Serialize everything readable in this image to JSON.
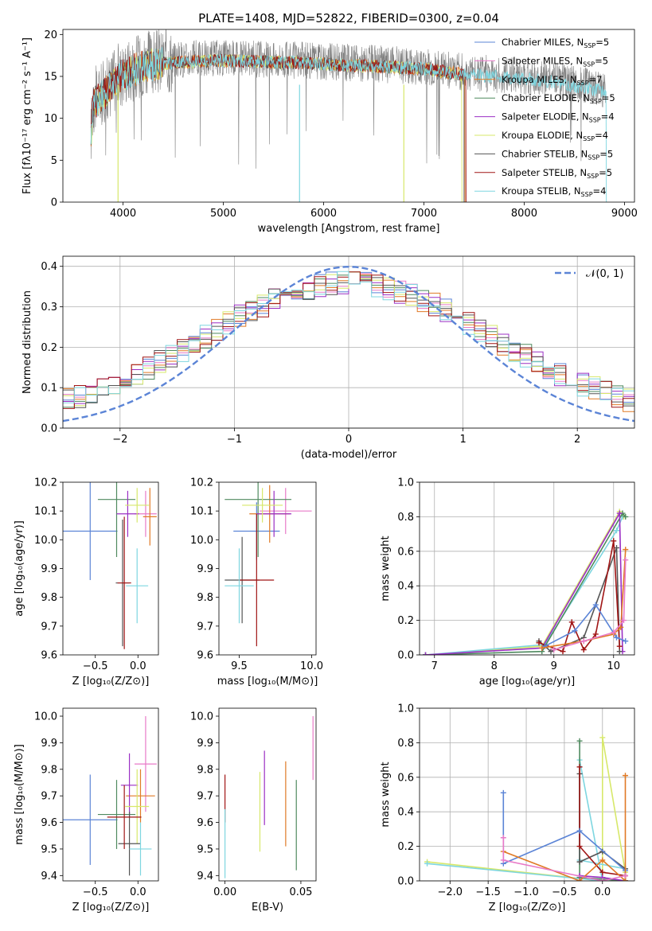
{
  "title": "PLATE=1408, MJD=52822, FIBERID=0300, z=0.04",
  "colors": {
    "Chabrier MILES": "#5b84d6",
    "Salpeter MILES": "#e87ac8",
    "Kroupa MILES": "#e07a25",
    "Chabrier ELODIE": "#4f8a5f",
    "Salpeter ELODIE": "#9b2fc4",
    "Kroupa ELODIE": "#d7e86a",
    "Chabrier STELIB": "#555555",
    "Salpeter STELIB": "#a01515",
    "Kroupa STELIB": "#7ed6e0",
    "gaussian": "#5b84d6",
    "data": "#808080"
  },
  "chart_data": [
    {
      "type": "line",
      "title": "PLATE=1408, MJD=52822, FIBERID=0300, z=0.04",
      "xlabel": "wavelength [Angstrom, rest frame]",
      "ylabel": "Flux [fλ10⁻¹⁷ erg cm⁻² s⁻¹ A⁻¹]",
      "xlim": [
        3400,
        9100
      ],
      "ylim": [
        0,
        20.6
      ],
      "xticks": [
        "4000",
        "5000",
        "6000",
        "7000",
        "8000",
        "9000"
      ],
      "yticks": [
        "0",
        "5",
        "10",
        "15",
        "20"
      ],
      "legend_position": "right",
      "legend": [
        {
          "model": "Chabrier MILES",
          "label": "Chabrier MILES, N",
          "nssp": "=5"
        },
        {
          "model": "Salpeter MILES",
          "label": "Salpeter MILES, N",
          "nssp": "=5"
        },
        {
          "model": "Kroupa MILES",
          "label": "Kroupa MILES, N",
          "nssp": "=7"
        },
        {
          "model": "Chabrier ELODIE",
          "label": "Chabrier ELODIE, N",
          "nssp": "=5"
        },
        {
          "model": "Salpeter ELODIE",
          "label": "Salpeter ELODIE, N",
          "nssp": "=4"
        },
        {
          "model": "Kroupa ELODIE",
          "label": "Kroupa ELODIE, N",
          "nssp": "=4"
        },
        {
          "model": "Chabrier STELIB",
          "label": "Chabrier STELIB, N",
          "nssp": "=5"
        },
        {
          "model": "Salpeter STELIB",
          "label": "Salpeter STELIB, N",
          "nssp": "=5"
        },
        {
          "model": "Kroupa STELIB",
          "label": "Kroupa STELIB, N",
          "nssp": "=4"
        }
      ],
      "continuum": {
        "x": [
          3680,
          3700,
          3800,
          3900,
          4000,
          4200,
          4500,
          5000,
          5500,
          6000,
          6500,
          7000,
          7400,
          7800,
          8200,
          8800
        ],
        "y": [
          8,
          12,
          13,
          14.5,
          15.5,
          16.5,
          17,
          17.2,
          17,
          16.8,
          16.5,
          16.2,
          15.5,
          15.2,
          14.8,
          13.5
        ]
      },
      "model_endpoints_x": {
        "Kroupa STELIB": [
          3680,
          8820
        ],
        "Salpeter STELIB": [
          3680,
          7420
        ],
        "Chabrier STELIB": [
          3680,
          7400
        ],
        "Kroupa MILES": [
          3680,
          7410
        ],
        "Kroupa ELODIE": [
          3680,
          7380
        ]
      }
    },
    {
      "type": "histogram",
      "xlabel": "(data-model)/error",
      "ylabel": "Normed distribution",
      "xlim": [
        -2.5,
        2.5
      ],
      "ylim": [
        0,
        0.425
      ],
      "xticks": [
        "−2",
        "−1",
        "0",
        "1",
        "2"
      ],
      "yticks": [
        "0.0",
        "0.1",
        "0.2",
        "0.3",
        "0.4"
      ],
      "grid": true,
      "legend_position": "top-right",
      "gaussian_label": "𝒩(0, 1)",
      "bin_width": 0.1
    },
    {
      "type": "errorbar",
      "xlabel": "Z [log₁₀(Z/Z⊙)]",
      "ylabel": "age  [log₁₀(age/yr)]",
      "xlim": [
        -0.88,
        0.24
      ],
      "ylim": [
        9.6,
        10.2
      ],
      "xticks": [
        "−0.5",
        "0.0"
      ],
      "yticks": [
        "9.6",
        "9.7",
        "9.8",
        "9.9",
        "10.0",
        "10.1",
        "10.2"
      ],
      "points": [
        {
          "model": "Chabrier MILES",
          "x": -0.56,
          "xerr": 0.32,
          "y": 10.03,
          "yerr": 0.17
        },
        {
          "model": "Salpeter MILES",
          "x": 0.09,
          "xerr": 0.13,
          "y": 10.09,
          "yerr": 0.08
        },
        {
          "model": "Kroupa MILES",
          "x": 0.14,
          "xerr": 0.08,
          "y": 10.08,
          "yerr": 0.1
        },
        {
          "model": "Chabrier ELODIE",
          "x": -0.25,
          "xerr": 0.22,
          "y": 10.14,
          "yerr": 0.2
        },
        {
          "model": "Salpeter ELODIE",
          "x": -0.12,
          "xerr": 0.13,
          "y": 10.09,
          "yerr": 0.08
        },
        {
          "model": "Kroupa ELODIE",
          "x": -0.01,
          "xerr": 0.14,
          "y": 10.12,
          "yerr": 0.06
        },
        {
          "model": "Chabrier STELIB",
          "x": -0.18,
          "xerr": 0.08,
          "y": 9.85,
          "yerr": 0.22
        },
        {
          "model": "Salpeter STELIB",
          "x": -0.16,
          "xerr": 0.08,
          "y": 9.85,
          "yerr": 0.23
        },
        {
          "model": "Kroupa STELIB",
          "x": -0.01,
          "xerr": 0.13,
          "y": 9.84,
          "yerr": 0.13
        }
      ]
    },
    {
      "type": "errorbar",
      "xlabel": "mass [log₁₀(M/M⊙)]",
      "xlim": [
        9.36,
        10.03
      ],
      "ylim": [
        9.6,
        10.2
      ],
      "xticks": [
        "9.5",
        "10.0"
      ],
      "yticks": [
        "9.6",
        "9.7",
        "9.8",
        "9.9",
        "10.0",
        "10.1",
        "10.2"
      ],
      "points": [
        {
          "model": "Chabrier MILES",
          "x": 9.62,
          "xerr": 0.16,
          "y": 10.03,
          "yerr": 0.1
        },
        {
          "model": "Salpeter MILES",
          "x": 9.82,
          "xerr": 0.18,
          "y": 10.1,
          "yerr": 0.08
        },
        {
          "model": "Kroupa MILES",
          "x": 9.71,
          "xerr": 0.14,
          "y": 10.09,
          "yerr": 0.1
        },
        {
          "model": "Chabrier ELODIE",
          "x": 9.63,
          "xerr": 0.23,
          "y": 10.14,
          "yerr": 0.2
        },
        {
          "model": "Salpeter ELODIE",
          "x": 9.74,
          "xerr": 0.12,
          "y": 10.09,
          "yerr": 0.08
        },
        {
          "model": "Kroupa ELODIE",
          "x": 9.66,
          "xerr": 0.14,
          "y": 10.12,
          "yerr": 0.06
        },
        {
          "model": "Chabrier STELIB",
          "x": 9.52,
          "xerr": 0.12,
          "y": 9.86,
          "yerr": 0.15
        },
        {
          "model": "Salpeter STELIB",
          "x": 9.62,
          "xerr": 0.12,
          "y": 9.86,
          "yerr": 0.23
        },
        {
          "model": "Kroupa STELIB",
          "x": 9.5,
          "xerr": 0.1,
          "y": 9.84,
          "yerr": 0.13
        }
      ]
    },
    {
      "type": "line",
      "xlabel": "age  [log₁₀(age/yr)]",
      "ylabel": "mass weight",
      "xlim": [
        6.75,
        10.35
      ],
      "ylim": [
        0,
        1
      ],
      "xticks": [
        "7",
        "8",
        "9",
        "10"
      ],
      "yticks": [
        "0.0",
        "0.2",
        "0.4",
        "0.6",
        "0.8",
        "1.0"
      ],
      "grid": true,
      "series": [
        {
          "model": "Kroupa ELODIE",
          "x": [
            6.85,
            8.8,
            10.1,
            10.17
          ],
          "y": [
            0.0,
            0.05,
            0.83,
            0.8
          ]
        },
        {
          "model": "Kroupa STELIB",
          "x": [
            6.85,
            8.85,
            10.05,
            10.15
          ],
          "y": [
            0.0,
            0.06,
            0.72,
            0.8
          ]
        },
        {
          "model": "Chabrier ELODIE",
          "x": [
            6.85,
            8.8,
            10.15,
            10.2
          ],
          "y": [
            0.0,
            0.02,
            0.82,
            0.8
          ]
        },
        {
          "model": "Salpeter ELODIE",
          "x": [
            6.85,
            8.8,
            10.1,
            10.15
          ],
          "y": [
            0.0,
            0.04,
            0.82,
            0.02
          ]
        },
        {
          "model": "Chabrier STELIB",
          "x": [
            8.75,
            8.95,
            9.5,
            10.05,
            10.1
          ],
          "y": [
            0.08,
            0.02,
            0.1,
            0.62,
            0.02
          ]
        },
        {
          "model": "Salpeter STELIB",
          "x": [
            8.75,
            9.15,
            9.3,
            9.5,
            9.7,
            10.0,
            10.1
          ],
          "y": [
            0.07,
            0.02,
            0.19,
            0.03,
            0.12,
            0.66,
            0.05
          ]
        },
        {
          "model": "Chabrier MILES",
          "x": [
            8.85,
            9.35,
            9.7,
            10.05,
            10.2
          ],
          "y": [
            0.05,
            0.14,
            0.29,
            0.1,
            0.08
          ]
        },
        {
          "model": "Kroupa MILES",
          "x": [
            8.8,
            9.5,
            10.0,
            10.12,
            10.2
          ],
          "y": [
            0.04,
            0.08,
            0.12,
            0.16,
            0.61
          ]
        },
        {
          "model": "Salpeter MILES",
          "x": [
            9.0,
            9.5,
            10.0,
            10.17,
            10.2
          ],
          "y": [
            0.03,
            0.08,
            0.13,
            0.2,
            0.55
          ]
        }
      ]
    },
    {
      "type": "errorbar",
      "xlabel": "Z [log₁₀(Z/Z⊙)]",
      "ylabel": "mass [log₁₀(M/M⊙)]",
      "xlim": [
        -0.88,
        0.24
      ],
      "ylim": [
        9.38,
        10.03
      ],
      "xticks": [
        "−0.5",
        "0.0"
      ],
      "yticks": [
        "9.4",
        "9.5",
        "9.6",
        "9.7",
        "9.8",
        "9.9",
        "10.0"
      ],
      "points": [
        {
          "model": "Chabrier MILES",
          "x": -0.56,
          "xerr": 0.32,
          "y": 9.61,
          "yerr": 0.17
        },
        {
          "model": "Salpeter MILES",
          "x": 0.09,
          "xerr": 0.13,
          "y": 9.82,
          "yerr": 0.18
        },
        {
          "model": "Kroupa MILES",
          "x": 0.03,
          "xerr": 0.17,
          "y": 9.7,
          "yerr": 0.1
        },
        {
          "model": "Chabrier ELODIE",
          "x": -0.25,
          "xerr": 0.22,
          "y": 9.63,
          "yerr": 0.13
        },
        {
          "model": "Salpeter ELODIE",
          "x": -0.1,
          "xerr": 0.1,
          "y": 9.74,
          "yerr": 0.12
        },
        {
          "model": "Kroupa ELODIE",
          "x": -0.01,
          "xerr": 0.14,
          "y": 9.66,
          "yerr": 0.14
        },
        {
          "model": "Chabrier STELIB",
          "x": -0.1,
          "xerr": 0.13,
          "y": 9.52,
          "yerr": 0.12
        },
        {
          "model": "Salpeter STELIB",
          "x": -0.16,
          "xerr": 0.2,
          "y": 9.62,
          "yerr": 0.12
        },
        {
          "model": "Kroupa STELIB",
          "x": 0.03,
          "xerr": 0.13,
          "y": 9.5,
          "yerr": 0.1
        }
      ]
    },
    {
      "type": "errorbar",
      "xlabel": "E(B-V)",
      "xlim": [
        -0.004,
        0.06
      ],
      "ylim": [
        9.38,
        10.03
      ],
      "xticks": [
        "0.00",
        "0.05"
      ],
      "yticks": [
        "9.4",
        "9.5",
        "9.6",
        "9.7",
        "9.8",
        "9.9",
        "10.0"
      ],
      "points": [
        {
          "model": "Salpeter STELIB",
          "x": 0.0,
          "y": 9.69,
          "yerr": 0.09
        },
        {
          "model": "Kroupa STELIB",
          "x": 0.0,
          "y": 9.52,
          "yerr": 0.13
        },
        {
          "model": "Kroupa ELODIE",
          "x": 0.023,
          "y": 9.64,
          "yerr": 0.15
        },
        {
          "model": "Salpeter ELODIE",
          "x": 0.026,
          "y": 9.73,
          "yerr": 0.14
        },
        {
          "model": "Kroupa MILES",
          "x": 0.04,
          "y": 9.67,
          "yerr": 0.16
        },
        {
          "model": "Chabrier ELODIE",
          "x": 0.047,
          "y": 9.59,
          "yerr": 0.17
        },
        {
          "model": "Salpeter MILES",
          "x": 0.058,
          "y": 9.88,
          "yerr": 0.12
        }
      ]
    },
    {
      "type": "line",
      "xlabel": "Z [log₁₀(Z/Z⊙)]",
      "ylabel": "mass weight",
      "xlim": [
        -2.4,
        0.42
      ],
      "ylim": [
        0,
        1
      ],
      "xticks": [
        "−2.0",
        "−1.5",
        "−1.0",
        "−0.5",
        "0.0"
      ],
      "yticks": [
        "0.0",
        "0.2",
        "0.4",
        "0.6",
        "0.8",
        "1.0"
      ],
      "grid": true,
      "series": [
        {
          "model": "Kroupa ELODIE",
          "x": [
            -2.3,
            0.0,
            0.0,
            0.3
          ],
          "y": [
            0.11,
            0.0,
            0.83,
            0.05
          ]
        },
        {
          "model": "Kroupa STELIB",
          "x": [
            -2.3,
            0.0,
            -0.3,
            -0.3,
            0.3
          ],
          "y": [
            0.1,
            0.0,
            0.7,
            0.12,
            0.07
          ]
        },
        {
          "model": "Chabrier ELODIE",
          "x": [
            -0.3,
            -0.3,
            0.3
          ],
          "y": [
            0.81,
            0.02,
            0.0
          ]
        },
        {
          "model": "Salpeter ELODIE",
          "x": [
            -0.3,
            0.0,
            0.3
          ],
          "y": [
            0.03,
            0.02,
            0.0
          ]
        },
        {
          "model": "Chabrier STELIB",
          "x": [
            -0.3,
            -0.3,
            0.0,
            0.3,
            0.3
          ],
          "y": [
            0.62,
            0.11,
            0.17,
            0.07,
            0.0
          ]
        },
        {
          "model": "Salpeter STELIB",
          "x": [
            -0.3,
            -0.3,
            0.0,
            0.3
          ],
          "y": [
            0.66,
            0.2,
            0.05,
            0.03
          ]
        },
        {
          "model": "Chabrier MILES",
          "x": [
            -1.3,
            -1.3,
            -0.3,
            0.3
          ],
          "y": [
            0.51,
            0.1,
            0.29,
            0.06
          ]
        },
        {
          "model": "Kroupa MILES",
          "x": [
            -1.3,
            -0.3,
            0.0,
            0.3,
            0.3
          ],
          "y": [
            0.17,
            0.0,
            0.12,
            0.0,
            0.61
          ]
        },
        {
          "model": "Salpeter MILES",
          "x": [
            -1.3,
            -1.3,
            0.0,
            0.3
          ],
          "y": [
            0.25,
            0.12,
            0.0,
            0.03
          ]
        }
      ]
    }
  ]
}
